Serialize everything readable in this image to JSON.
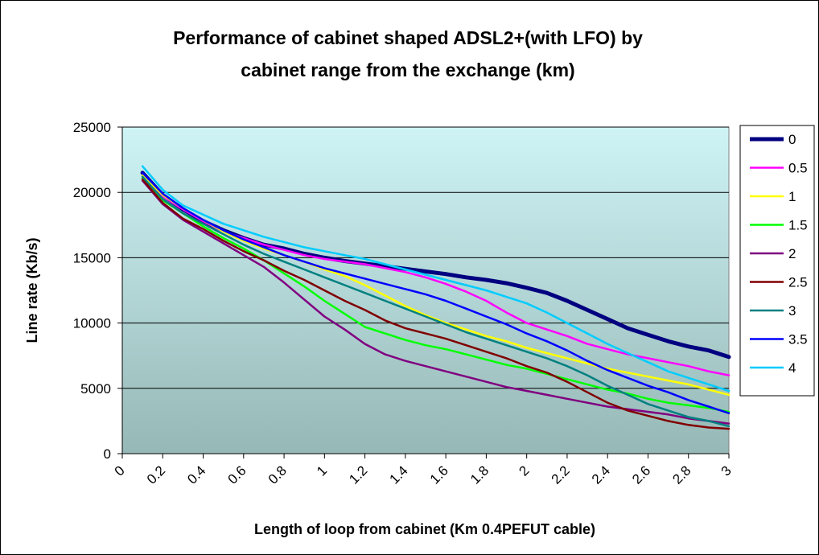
{
  "chart_data": {
    "type": "line",
    "title": [
      "Performance of cabinet shaped ADSL2+(with LFO) by",
      "cabinet range from the exchange (km)"
    ],
    "xlabel": "Length of loop from cabinet (Km 0.4PEFUT cable)",
    "ylabel": "Line rate (Kb/s)",
    "xlim": [
      0,
      3
    ],
    "ylim": [
      0,
      25000
    ],
    "x_tick_labels": [
      "0",
      "0.2",
      "0.4",
      "0.6",
      "0.8",
      "1",
      "1.2",
      "1.4",
      "1.6",
      "1.8",
      "2",
      "2.2",
      "2.4",
      "2.6",
      "2.8",
      "3"
    ],
    "x_tick_values": [
      0,
      0.2,
      0.4,
      0.6,
      0.8,
      1,
      1.2,
      1.4,
      1.6,
      1.8,
      2,
      2.2,
      2.4,
      2.6,
      2.8,
      3
    ],
    "y_tick_labels": [
      "0",
      "5000",
      "10000",
      "15000",
      "20000",
      "25000"
    ],
    "y_tick_values": [
      0,
      5000,
      10000,
      15000,
      20000,
      25000
    ],
    "grid": "horizontal",
    "legend_position": "right",
    "plot_background": [
      "#cff4f6",
      "#96b8b6"
    ],
    "x": [
      0.1,
      0.2,
      0.3,
      0.4,
      0.5,
      0.6,
      0.7,
      0.8,
      0.9,
      1.0,
      1.1,
      1.2,
      1.3,
      1.4,
      1.5,
      1.6,
      1.7,
      1.8,
      1.9,
      2.0,
      2.1,
      2.2,
      2.3,
      2.4,
      2.5,
      2.6,
      2.7,
      2.8,
      2.9,
      3.0
    ],
    "series": [
      {
        "name": "0",
        "color": "#000080",
        "width": 5,
        "values": [
          21500,
          19800,
          18700,
          17800,
          17100,
          16500,
          16000,
          15700,
          15300,
          15000,
          14750,
          14550,
          14350,
          14150,
          13950,
          13750,
          13500,
          13300,
          13050,
          12700,
          12300,
          11700,
          11000,
          10300,
          9600,
          9100,
          8600,
          8200,
          7900,
          7400
        ]
      },
      {
        "name": "0.5",
        "color": "#ff00ff",
        "width": 2.5,
        "values": [
          21300,
          19700,
          18700,
          17800,
          17000,
          16500,
          16000,
          15600,
          15200,
          14900,
          14700,
          14500,
          14200,
          13900,
          13500,
          13000,
          12400,
          11700,
          10800,
          10000,
          9500,
          9000,
          8400,
          8000,
          7600,
          7300,
          7000,
          6700,
          6300,
          6000
        ]
      },
      {
        "name": "1",
        "color": "#ffff00",
        "width": 2.5,
        "values": [
          21300,
          19800,
          18800,
          17900,
          17000,
          16300,
          15700,
          15200,
          14700,
          14100,
          13600,
          12900,
          12100,
          11300,
          10600,
          10000,
          9500,
          9000,
          8600,
          8100,
          7700,
          7300,
          6900,
          6500,
          6200,
          5900,
          5600,
          5300,
          4900,
          4500
        ]
      },
      {
        "name": "1.5",
        "color": "#00ff00",
        "width": 2.5,
        "values": [
          21100,
          19400,
          18400,
          17400,
          16500,
          15700,
          14800,
          13800,
          12800,
          11700,
          10700,
          9700,
          9200,
          8700,
          8300,
          8000,
          7600,
          7200,
          6800,
          6500,
          6100,
          5700,
          5300,
          4900,
          4600,
          4200,
          3900,
          3700,
          3500,
          3200
        ]
      },
      {
        "name": "2",
        "color": "#800080",
        "width": 2.5,
        "values": [
          20900,
          19100,
          17900,
          17000,
          16100,
          15200,
          14300,
          13100,
          11800,
          10500,
          9500,
          8400,
          7600,
          7100,
          6700,
          6300,
          5900,
          5500,
          5100,
          4800,
          4500,
          4200,
          3900,
          3600,
          3400,
          3200,
          3000,
          2700,
          2500,
          2300
        ]
      },
      {
        "name": "2.5",
        "color": "#800000",
        "width": 2.5,
        "values": [
          21000,
          19200,
          18000,
          17200,
          16300,
          15500,
          14800,
          14000,
          13300,
          12500,
          11700,
          11000,
          10200,
          9600,
          9200,
          8800,
          8300,
          7800,
          7300,
          6700,
          6200,
          5500,
          4700,
          3900,
          3300,
          2900,
          2500,
          2200,
          2000,
          1900
        ]
      },
      {
        "name": "3",
        "color": "#008080",
        "width": 2.5,
        "values": [
          21200,
          19500,
          18400,
          17600,
          16800,
          16000,
          15300,
          14700,
          14100,
          13500,
          12900,
          12300,
          11700,
          11100,
          10500,
          9900,
          9300,
          8800,
          8300,
          7800,
          7300,
          6700,
          6000,
          5200,
          4500,
          3800,
          3300,
          2800,
          2500,
          2100
        ]
      },
      {
        "name": "3.5",
        "color": "#0000ff",
        "width": 2.5,
        "values": [
          21500,
          19900,
          18800,
          17900,
          17100,
          16400,
          15800,
          15200,
          14700,
          14200,
          13800,
          13400,
          13000,
          12600,
          12200,
          11700,
          11100,
          10500,
          9900,
          9200,
          8600,
          7900,
          7100,
          6400,
          5800,
          5200,
          4700,
          4100,
          3600,
          3100
        ]
      },
      {
        "name": "4",
        "color": "#00ccff",
        "width": 2.5,
        "values": [
          22000,
          20200,
          19000,
          18300,
          17600,
          17100,
          16600,
          16200,
          15800,
          15500,
          15200,
          14900,
          14500,
          14100,
          13700,
          13300,
          12900,
          12500,
          12000,
          11500,
          10800,
          10000,
          9200,
          8400,
          7700,
          7000,
          6300,
          5800,
          5300,
          4800
        ]
      }
    ]
  }
}
